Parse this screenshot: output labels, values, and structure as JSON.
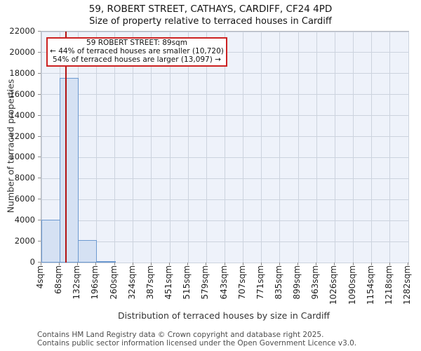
{
  "title": "59, ROBERT STREET, CATHAYS, CARDIFF, CF24 4PD",
  "subtitle": "Size of property relative to terraced houses in Cardiff",
  "annotation": {
    "line1": "59 ROBERT STREET: 89sqm",
    "line2": "← 44% of terraced houses are smaller (10,720)",
    "line3": "54% of terraced houses are larger (13,097) →"
  },
  "footer": {
    "line1": "Contains HM Land Registry data © Crown copyright and database right 2025.",
    "line2": "Contains public sector information licensed under the Open Government Licence v3.0."
  },
  "chart_data": {
    "type": "bar",
    "title": "59, ROBERT STREET, CATHAYS, CARDIFF, CF24 4PD",
    "subtitle": "Size of property relative to terraced houses in Cardiff",
    "xlabel": "Distribution of terraced houses by size in Cardiff",
    "ylabel": "Number of terraced properties",
    "bin_edges_sqm": [
      4,
      68,
      132,
      196,
      260,
      324,
      387,
      451,
      515,
      579,
      643,
      707,
      771,
      835,
      899,
      963,
      1026,
      1090,
      1154,
      1218,
      1282
    ],
    "x_tick_labels": [
      "4sqm",
      "68sqm",
      "132sqm",
      "196sqm",
      "260sqm",
      "324sqm",
      "387sqm",
      "451sqm",
      "515sqm",
      "579sqm",
      "643sqm",
      "707sqm",
      "771sqm",
      "835sqm",
      "899sqm",
      "963sqm",
      "1026sqm",
      "1090sqm",
      "1154sqm",
      "1218sqm",
      "1282sqm"
    ],
    "y_ticks": [
      0,
      2000,
      4000,
      6000,
      8000,
      10000,
      12000,
      14000,
      16000,
      18000,
      20000,
      22000
    ],
    "values": [
      4100,
      17600,
      2150,
      150,
      0,
      0,
      0,
      0,
      0,
      0,
      0,
      0,
      0,
      0,
      0,
      0,
      0,
      0,
      0,
      0
    ],
    "ylim": [
      0,
      22000
    ],
    "xlim": [
      4,
      1282
    ],
    "marker_value_sqm": 89,
    "grid": true,
    "legend": "none",
    "colors": {
      "bar_fill": "#d5e1f3",
      "bar_edge": "#6d9ad0",
      "marker_line": "#b31212",
      "annotation_border": "#cc2222",
      "plot_bg": "#eef2fa",
      "gridline": "#ccd3de"
    }
  }
}
